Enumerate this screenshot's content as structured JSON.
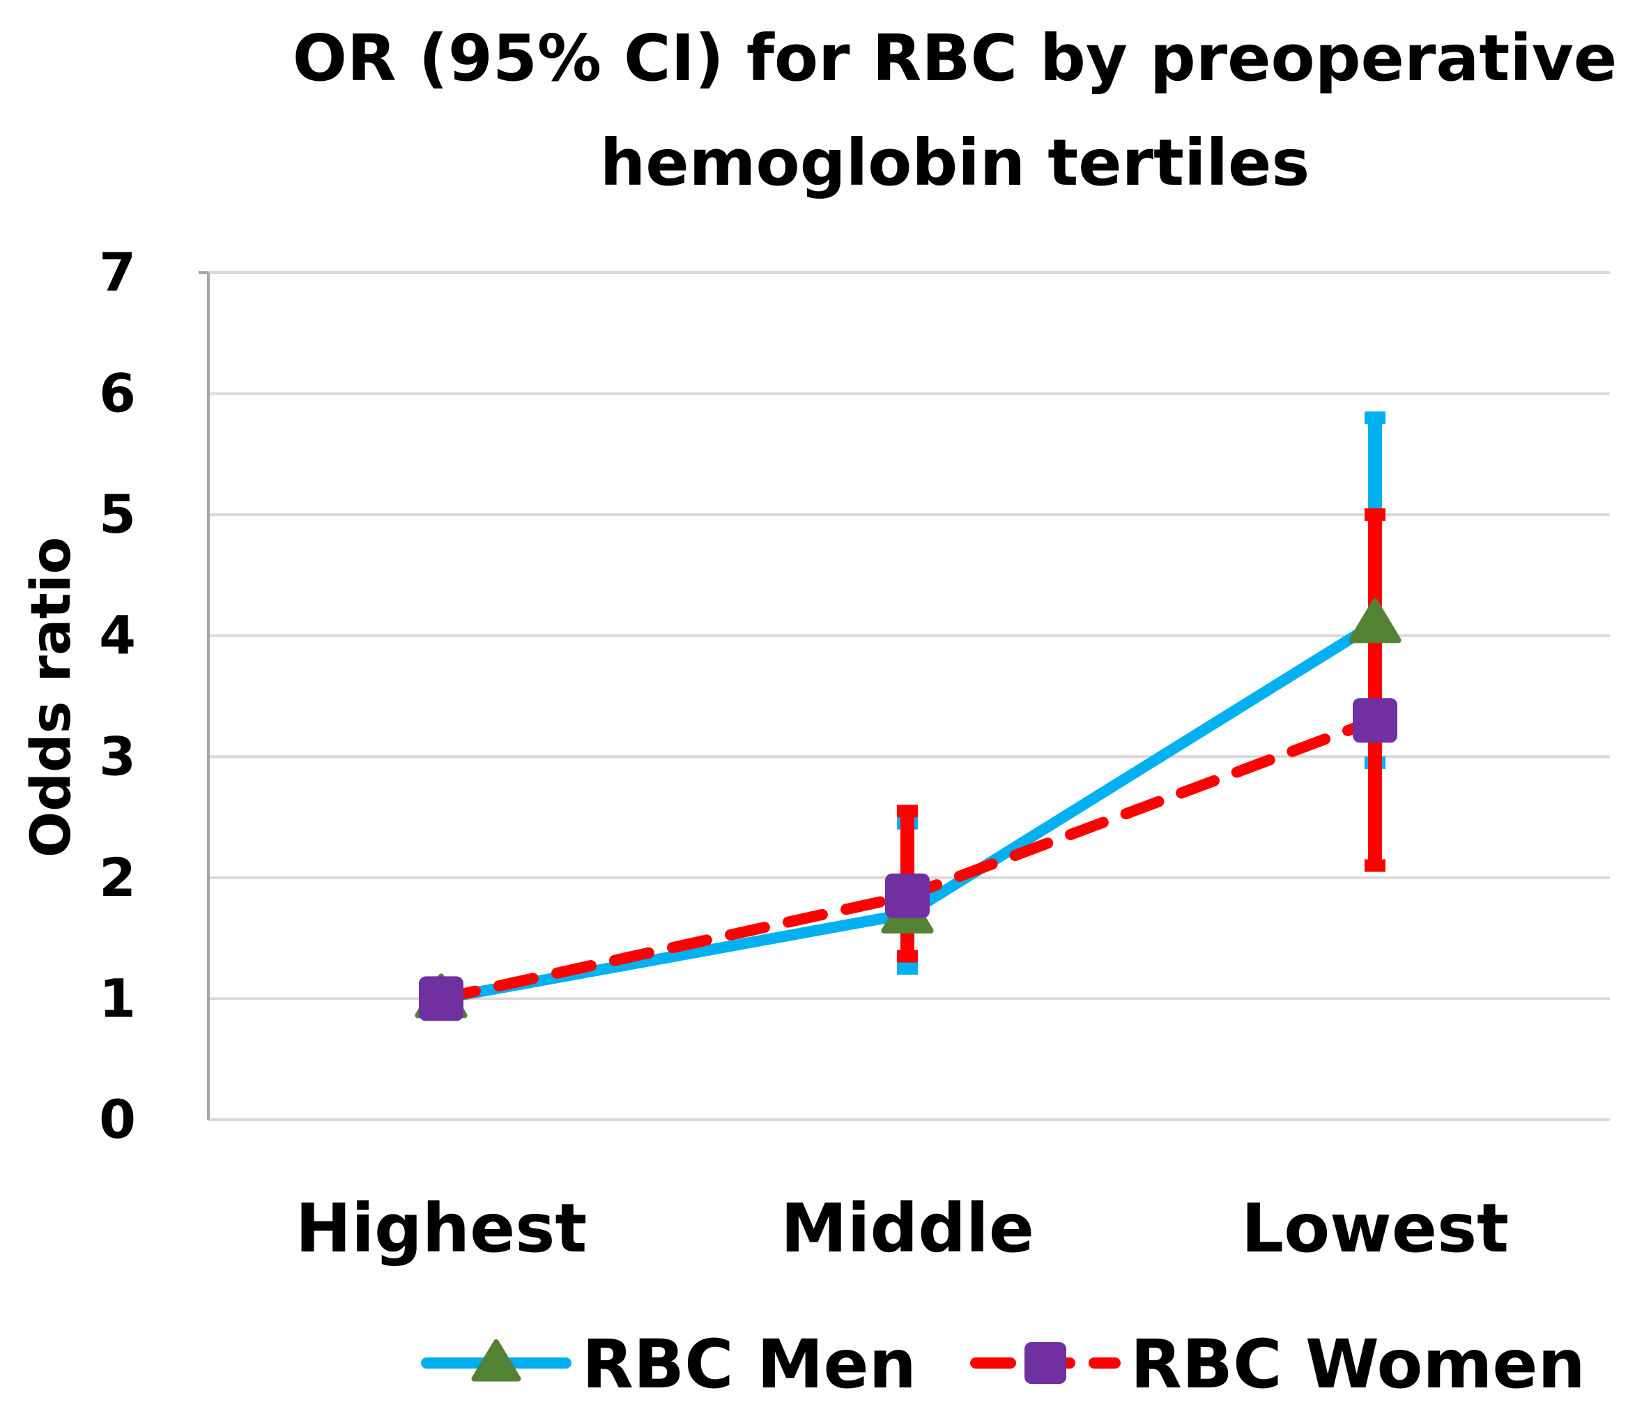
{
  "chart_data": {
    "type": "line",
    "title": "OR (95% CI) for RBC by preoperative hemoglobin tertiles",
    "title_lines": [
      "OR (95% CI) for RBC by preoperative",
      "hemoglobin tertiles"
    ],
    "xlabel": "",
    "ylabel": "Odds ratio",
    "categories": [
      "Highest",
      "Middle",
      "Lowest"
    ],
    "ylim": [
      0,
      7
    ],
    "yticks": [
      0,
      1,
      2,
      3,
      4,
      5,
      6,
      7
    ],
    "grid": true,
    "legend_position": "bottom",
    "series": [
      {
        "name": "RBC Men",
        "values": [
          1,
          1.7,
          4.1
        ],
        "ci_low": [
          null,
          1.25,
          2.95
        ],
        "ci_high": [
          null,
          2.45,
          5.8
        ],
        "line_color": "#00B0F0",
        "marker": "triangle",
        "marker_color": "#548235",
        "dash": false
      },
      {
        "name": "RBC Women",
        "values": [
          1,
          1.85,
          3.3
        ],
        "ci_low": [
          null,
          1.35,
          2.1
        ],
        "ci_high": [
          null,
          2.55,
          5.0
        ],
        "line_color": "#FF0000",
        "marker": "square",
        "marker_color": "#7030A0",
        "dash": true
      }
    ]
  }
}
